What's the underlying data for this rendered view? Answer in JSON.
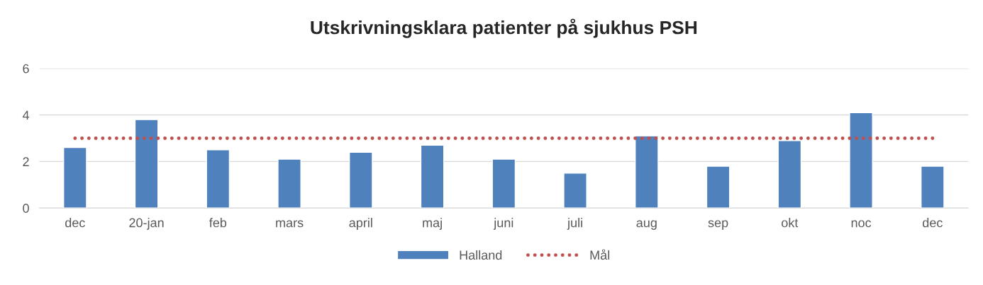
{
  "chart_data": {
    "type": "bar",
    "title": "Utskrivningsklara patienter på sjukhus PSH",
    "categories": [
      "dec",
      "20-jan",
      "feb",
      "mars",
      "april",
      "maj",
      "juni",
      "juli",
      "aug",
      "sep",
      "okt",
      "noc",
      "dec"
    ],
    "series": [
      {
        "name": "Halland",
        "color": "#4f81bd",
        "values": [
          2.6,
          3.8,
          2.5,
          2.1,
          2.4,
          2.7,
          2.1,
          1.5,
          3.1,
          1.8,
          2.9,
          4.1,
          1.8
        ]
      },
      {
        "name": "Mål",
        "type": "line",
        "color": "#c0504d",
        "line_style": "dotted",
        "values": [
          3,
          3,
          3,
          3,
          3,
          3,
          3,
          3,
          3,
          3,
          3,
          3,
          3
        ]
      }
    ],
    "ylim": [
      0,
      6
    ],
    "yticks": [
      0,
      2,
      4,
      6
    ],
    "grid": "y",
    "legend": "bottom"
  }
}
